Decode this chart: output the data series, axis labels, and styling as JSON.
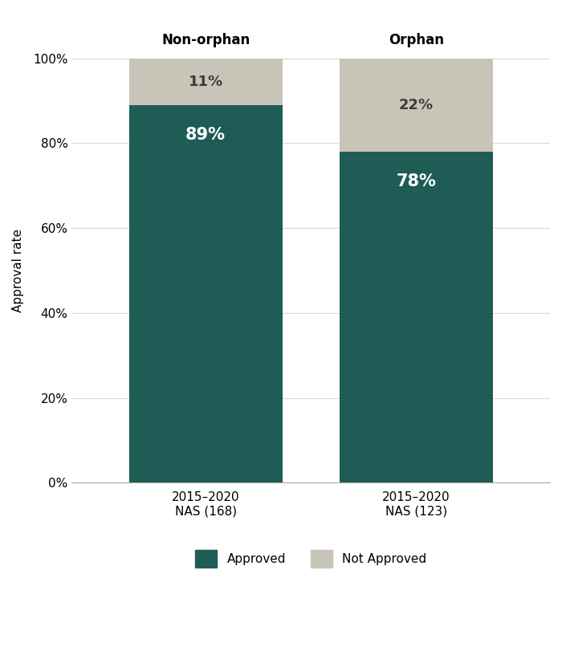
{
  "groups": [
    "Non-orphan",
    "Orphan"
  ],
  "bar_labels": [
    "2015–2020\nNAS (168)",
    "2015–2020\nNAS (123)"
  ],
  "approved_pct": [
    89,
    78
  ],
  "not_approved_pct": [
    11,
    22
  ],
  "approved_labels": [
    "89%",
    "78%"
  ],
  "not_approved_labels": [
    "11%",
    "22%"
  ],
  "color_approved": "#1e5c55",
  "color_not_approved": "#c8c5b8",
  "ylabel": "Approval rate",
  "yticks": [
    0,
    20,
    40,
    60,
    80,
    100
  ],
  "ytick_labels": [
    "0%",
    "20%",
    "40%",
    "60%",
    "80%",
    "100%"
  ],
  "legend_approved": "Approved",
  "legend_not_approved": "Not Approved",
  "background_color": "#ffffff",
  "bar_width": 0.32,
  "group_title_fontsize": 12,
  "tick_fontsize": 11,
  "legend_fontsize": 11,
  "ylabel_fontsize": 11,
  "pct_fontsize_approved": 15,
  "pct_fontsize_not_approved": 13
}
